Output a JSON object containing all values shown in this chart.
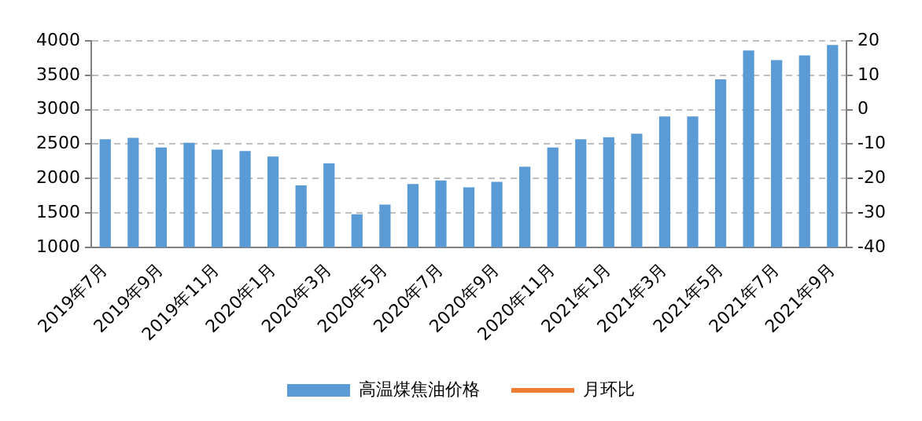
{
  "chart_data": {
    "type": "bar",
    "categories": [
      "2019年7月",
      null,
      "2019年9月",
      null,
      "2019年11月",
      null,
      "2020年1月",
      null,
      "2020年3月",
      null,
      "2020年5月",
      null,
      "2020年7月",
      null,
      "2020年9月",
      null,
      "2020年11月",
      null,
      "2021年1月",
      null,
      "2021年3月",
      null,
      "2021年5月",
      null,
      "2021年7月",
      null,
      "2021年9月"
    ],
    "series": [
      {
        "name": "高温煤焦油价格",
        "color": "#5b9bd5",
        "values": [
          2570,
          2590,
          2450,
          2520,
          2420,
          2400,
          2320,
          1900,
          2220,
          1480,
          1620,
          1920,
          1970,
          1870,
          1950,
          2170,
          2450,
          2570,
          2600,
          2650,
          2900,
          2900,
          3440,
          3860,
          3720,
          3790,
          3940
        ]
      },
      {
        "name": "月环比",
        "type": "line",
        "axis": "y2",
        "color": "#ed7d31",
        "values": [
          null,
          null,
          null,
          null,
          null,
          null,
          null,
          null,
          null,
          null,
          null,
          null,
          null,
          null,
          null,
          null,
          null,
          null,
          null,
          null,
          null,
          null,
          null,
          null,
          null,
          null,
          null
        ]
      }
    ],
    "ylim": [
      1000,
      4000
    ],
    "yticks": [
      1000,
      1500,
      2000,
      2500,
      3000,
      3500,
      4000
    ],
    "y2lim": [
      -40,
      20
    ],
    "y2ticks": [
      -40,
      -30,
      -20,
      -10,
      0,
      10,
      20
    ],
    "grid": "y",
    "legend": "bottom"
  }
}
